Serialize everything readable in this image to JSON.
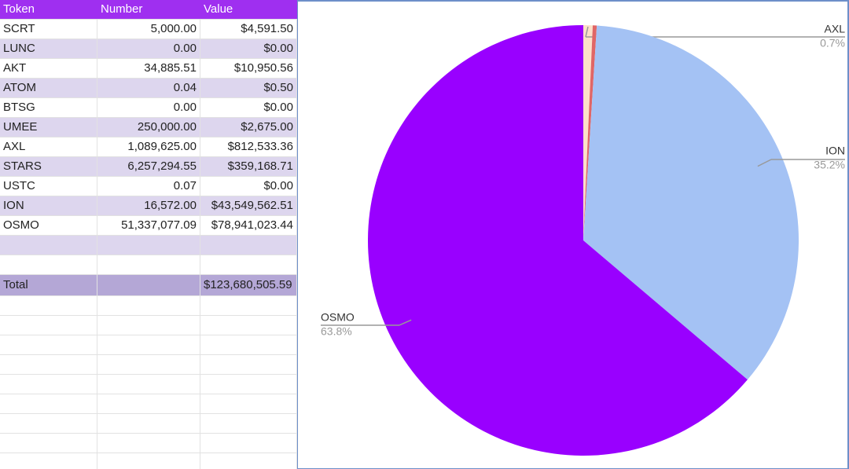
{
  "table": {
    "header": [
      "Token",
      "Number",
      "Value"
    ],
    "rows": [
      [
        "SCRT",
        "5,000.00",
        "$4,591.50"
      ],
      [
        "LUNC",
        "0.00",
        "$0.00"
      ],
      [
        "AKT",
        "34,885.51",
        "$10,950.56"
      ],
      [
        "ATOM",
        "0.04",
        "$0.50"
      ],
      [
        "BTSG",
        "0.00",
        "$0.00"
      ],
      [
        "UMEE",
        "250,000.00",
        "$2,675.00"
      ],
      [
        "AXL",
        "1,089,625.00",
        "$812,533.36"
      ],
      [
        "STARS",
        "6,257,294.55",
        "$359,168.71"
      ],
      [
        "USTC",
        "0.07",
        "$0.00"
      ],
      [
        "ION",
        "16,572.00",
        "$43,549,562.51"
      ],
      [
        "OSMO",
        "51,337,077.09",
        "$78,941,023.44"
      ]
    ],
    "total": {
      "label": "Total",
      "value": "$123,680,505.59"
    }
  },
  "chart_data": {
    "type": "pie",
    "categories": [
      "AXL",
      null,
      "ION",
      "OSMO"
    ],
    "values": [
      0.7,
      0.3,
      35.2,
      63.8
    ],
    "value_labels": [
      "0.7%",
      null,
      "35.2%",
      "63.8%"
    ],
    "colors": [
      "#fde0c8",
      "#e06666",
      "#a4c2f4",
      "#9900ff"
    ]
  }
}
